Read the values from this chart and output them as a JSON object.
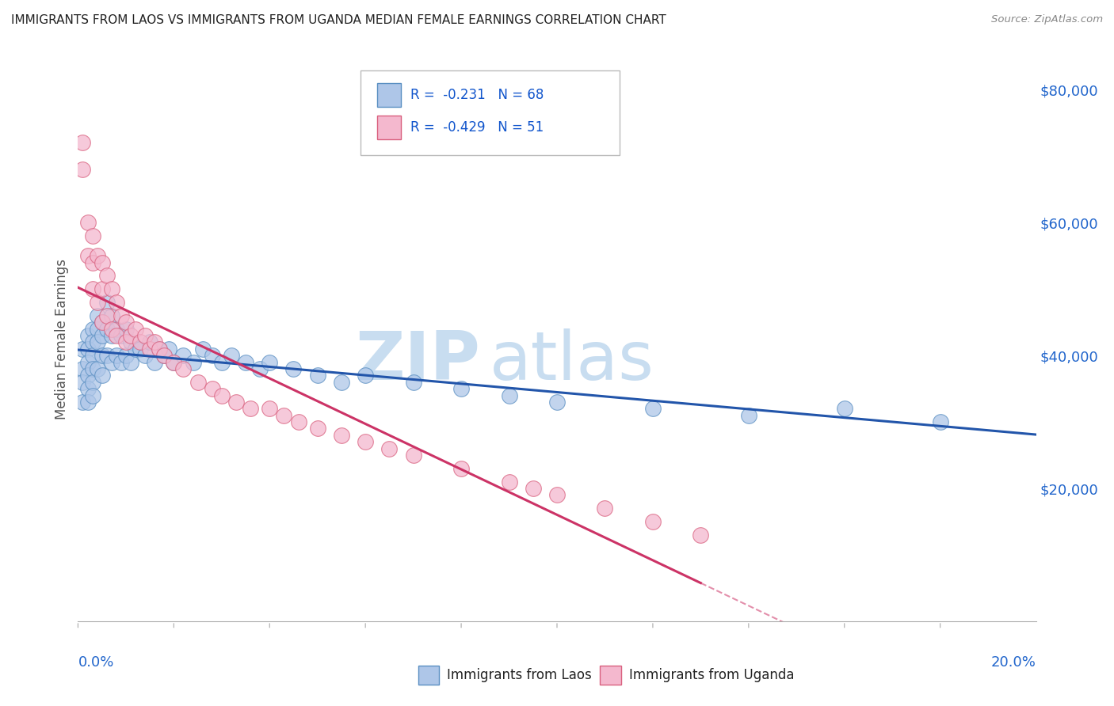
{
  "title": "IMMIGRANTS FROM LAOS VS IMMIGRANTS FROM UGANDA MEDIAN FEMALE EARNINGS CORRELATION CHART",
  "source": "Source: ZipAtlas.com",
  "ylabel": "Median Female Earnings",
  "xmin": 0.0,
  "xmax": 0.2,
  "ymin": 0,
  "ymax": 85000,
  "yticks": [
    20000,
    40000,
    60000,
    80000
  ],
  "ytick_labels": [
    "$20,000",
    "$40,000",
    "$60,000",
    "$80,000"
  ],
  "laos_color": "#aec6e8",
  "laos_edge_color": "#5a8fc2",
  "uganda_color": "#f4b8ce",
  "uganda_edge_color": "#d9607e",
  "laos_line_color": "#2255aa",
  "uganda_line_color": "#cc3366",
  "legend_text_color": "#1155cc",
  "legend_r_laos": "R =  -0.231",
  "legend_n_laos": "N = 68",
  "legend_r_uganda": "R =  -0.429",
  "legend_n_uganda": "N = 51",
  "laos_scatter_x": [
    0.001,
    0.001,
    0.001,
    0.001,
    0.002,
    0.002,
    0.002,
    0.002,
    0.002,
    0.002,
    0.003,
    0.003,
    0.003,
    0.003,
    0.003,
    0.003,
    0.004,
    0.004,
    0.004,
    0.004,
    0.005,
    0.005,
    0.005,
    0.005,
    0.006,
    0.006,
    0.006,
    0.007,
    0.007,
    0.007,
    0.008,
    0.008,
    0.009,
    0.009,
    0.01,
    0.01,
    0.011,
    0.011,
    0.012,
    0.013,
    0.014,
    0.015,
    0.016,
    0.017,
    0.018,
    0.019,
    0.02,
    0.022,
    0.024,
    0.026,
    0.028,
    0.03,
    0.032,
    0.035,
    0.038,
    0.04,
    0.045,
    0.05,
    0.055,
    0.06,
    0.07,
    0.08,
    0.09,
    0.1,
    0.12,
    0.14,
    0.16,
    0.18
  ],
  "laos_scatter_y": [
    41000,
    38000,
    36000,
    33000,
    43000,
    41000,
    39000,
    37000,
    35000,
    33000,
    44000,
    42000,
    40000,
    38000,
    36000,
    34000,
    46000,
    44000,
    42000,
    38000,
    45000,
    43000,
    40000,
    37000,
    48000,
    44000,
    40000,
    46000,
    43000,
    39000,
    44000,
    40000,
    43000,
    39000,
    44000,
    40000,
    42000,
    39000,
    41000,
    41000,
    40000,
    42000,
    39000,
    41000,
    40000,
    41000,
    39000,
    40000,
    39000,
    41000,
    40000,
    39000,
    40000,
    39000,
    38000,
    39000,
    38000,
    37000,
    36000,
    37000,
    36000,
    35000,
    34000,
    33000,
    32000,
    31000,
    32000,
    30000
  ],
  "uganda_scatter_x": [
    0.001,
    0.001,
    0.002,
    0.002,
    0.003,
    0.003,
    0.003,
    0.004,
    0.004,
    0.005,
    0.005,
    0.005,
    0.006,
    0.006,
    0.007,
    0.007,
    0.008,
    0.008,
    0.009,
    0.01,
    0.01,
    0.011,
    0.012,
    0.013,
    0.014,
    0.015,
    0.016,
    0.017,
    0.018,
    0.02,
    0.022,
    0.025,
    0.028,
    0.03,
    0.033,
    0.036,
    0.04,
    0.043,
    0.046,
    0.05,
    0.055,
    0.06,
    0.065,
    0.07,
    0.08,
    0.09,
    0.095,
    0.1,
    0.11,
    0.12,
    0.13
  ],
  "uganda_scatter_y": [
    72000,
    68000,
    60000,
    55000,
    58000,
    54000,
    50000,
    55000,
    48000,
    54000,
    50000,
    45000,
    52000,
    46000,
    50000,
    44000,
    48000,
    43000,
    46000,
    45000,
    42000,
    43000,
    44000,
    42000,
    43000,
    41000,
    42000,
    41000,
    40000,
    39000,
    38000,
    36000,
    35000,
    34000,
    33000,
    32000,
    32000,
    31000,
    30000,
    29000,
    28000,
    27000,
    26000,
    25000,
    23000,
    21000,
    20000,
    19000,
    17000,
    15000,
    13000
  ],
  "background_color": "#ffffff",
  "grid_color": "#cccccc",
  "watermark_zip": "ZIP",
  "watermark_atlas": "atlas",
  "watermark_color": "#c8ddf0",
  "title_color": "#222222",
  "axis_label_color": "#555555",
  "tick_color": "#2266cc"
}
